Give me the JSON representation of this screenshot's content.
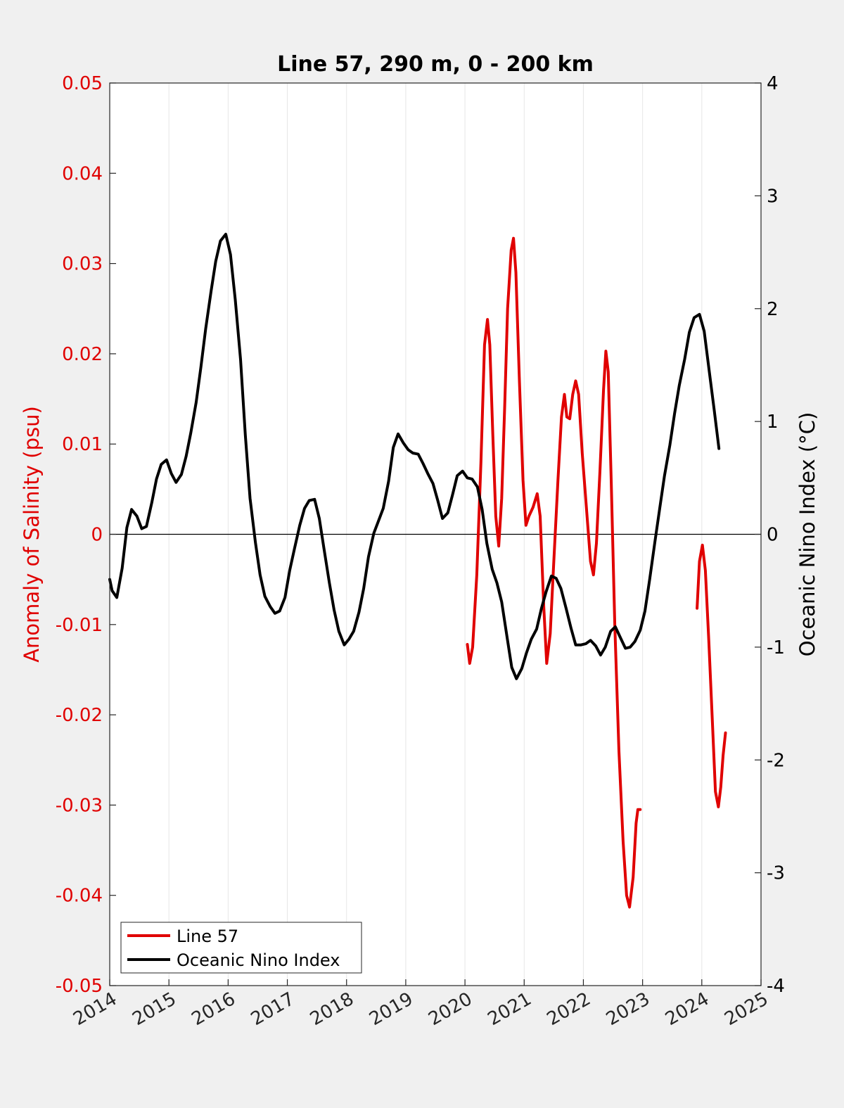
{
  "chart_data": {
    "type": "line",
    "title": "Line 57, 290 m, 0 - 200 km",
    "xlim": [
      2014,
      2025
    ],
    "x_ticks": [
      "2014",
      "2015",
      "2016",
      "2017",
      "2018",
      "2019",
      "2020",
      "2021",
      "2022",
      "2023",
      "2024",
      "2025"
    ],
    "left_axis": {
      "label": "Anomaly of Salinity (psu)",
      "color": "#e00000",
      "ylim": [
        -0.05,
        0.05
      ],
      "ticks": [
        "-0.05",
        "-0.04",
        "-0.03",
        "-0.02",
        "-0.01",
        "0",
        "0.01",
        "0.02",
        "0.03",
        "0.04",
        "0.05"
      ]
    },
    "right_axis": {
      "label": "Oceanic Nino Index (°C)",
      "color": "#000000",
      "ylim": [
        -4,
        4
      ],
      "ticks": [
        "-4",
        "-3",
        "-2",
        "-1",
        "0",
        "1",
        "2",
        "3",
        "4"
      ]
    },
    "grid": "vertical",
    "zero_line": true,
    "legend": {
      "placement": "bottom-left"
    },
    "series": [
      {
        "name": "Line 57",
        "axis": "left",
        "color": "#e00000",
        "segments": [
          [
            [
              2020.04,
              -0.0122
            ],
            [
              2020.08,
              -0.0143
            ],
            [
              2020.13,
              -0.0125
            ],
            [
              2020.2,
              -0.0045
            ],
            [
              2020.27,
              0.008
            ],
            [
              2020.33,
              0.021
            ],
            [
              2020.38,
              0.0238
            ],
            [
              2020.42,
              0.021
            ],
            [
              2020.47,
              0.011
            ],
            [
              2020.52,
              0.002
            ],
            [
              2020.57,
              -0.0013
            ],
            [
              2020.62,
              0.004
            ],
            [
              2020.67,
              0.014
            ],
            [
              2020.72,
              0.025
            ],
            [
              2020.78,
              0.0315
            ],
            [
              2020.82,
              0.0328
            ],
            [
              2020.86,
              0.029
            ],
            [
              2020.92,
              0.017
            ],
            [
              2020.98,
              0.006
            ],
            [
              2021.03,
              0.001
            ],
            [
              2021.08,
              0.002
            ],
            [
              2021.15,
              0.003
            ],
            [
              2021.22,
              0.0045
            ],
            [
              2021.27,
              0.002
            ],
            [
              2021.33,
              -0.008
            ],
            [
              2021.38,
              -0.0143
            ],
            [
              2021.44,
              -0.011
            ],
            [
              2021.5,
              -0.003
            ],
            [
              2021.57,
              0.006
            ],
            [
              2021.63,
              0.013
            ],
            [
              2021.68,
              0.0155
            ],
            [
              2021.72,
              0.013
            ],
            [
              2021.77,
              0.0128
            ],
            [
              2021.82,
              0.0155
            ],
            [
              2021.87,
              0.017
            ],
            [
              2021.92,
              0.0155
            ],
            [
              2021.98,
              0.009
            ],
            [
              2022.05,
              0.003
            ],
            [
              2022.12,
              -0.003
            ],
            [
              2022.17,
              -0.0045
            ],
            [
              2022.22,
              -0.001
            ],
            [
              2022.28,
              0.007
            ],
            [
              2022.34,
              0.016
            ],
            [
              2022.38,
              0.0203
            ],
            [
              2022.42,
              0.018
            ],
            [
              2022.47,
              0.006
            ],
            [
              2022.53,
              -0.01
            ],
            [
              2022.6,
              -0.024
            ],
            [
              2022.67,
              -0.034
            ],
            [
              2022.73,
              -0.04
            ],
            [
              2022.78,
              -0.0413
            ],
            [
              2022.84,
              -0.038
            ],
            [
              2022.89,
              -0.032
            ],
            [
              2022.92,
              -0.0305
            ],
            [
              2022.96,
              -0.0305
            ]
          ],
          [
            [
              2023.92,
              -0.0082
            ],
            [
              2023.96,
              -0.003
            ],
            [
              2024.01,
              -0.0012
            ],
            [
              2024.06,
              -0.004
            ],
            [
              2024.12,
              -0.012
            ],
            [
              2024.18,
              -0.021
            ],
            [
              2024.23,
              -0.0285
            ],
            [
              2024.28,
              -0.0302
            ],
            [
              2024.32,
              -0.028
            ],
            [
              2024.36,
              -0.0245
            ],
            [
              2024.4,
              -0.022
            ]
          ]
        ]
      },
      {
        "name": "Oceanic Nino Index",
        "axis": "right",
        "color": "#000000",
        "segments": [
          [
            [
              2014.0,
              -0.4
            ],
            [
              2014.04,
              -0.5
            ],
            [
              2014.12,
              -0.56
            ],
            [
              2014.21,
              -0.3
            ],
            [
              2014.29,
              0.06
            ],
            [
              2014.37,
              0.22
            ],
            [
              2014.46,
              0.16
            ],
            [
              2014.54,
              0.05
            ],
            [
              2014.62,
              0.07
            ],
            [
              2014.71,
              0.28
            ],
            [
              2014.79,
              0.49
            ],
            [
              2014.87,
              0.62
            ],
            [
              2014.96,
              0.66
            ],
            [
              2015.04,
              0.54
            ],
            [
              2015.12,
              0.46
            ],
            [
              2015.21,
              0.53
            ],
            [
              2015.29,
              0.69
            ],
            [
              2015.37,
              0.9
            ],
            [
              2015.46,
              1.17
            ],
            [
              2015.54,
              1.48
            ],
            [
              2015.62,
              1.82
            ],
            [
              2015.71,
              2.15
            ],
            [
              2015.79,
              2.42
            ],
            [
              2015.87,
              2.6
            ],
            [
              2015.96,
              2.66
            ],
            [
              2016.04,
              2.48
            ],
            [
              2016.12,
              2.08
            ],
            [
              2016.21,
              1.55
            ],
            [
              2016.29,
              0.88
            ],
            [
              2016.37,
              0.32
            ],
            [
              2016.46,
              -0.07
            ],
            [
              2016.54,
              -0.36
            ],
            [
              2016.62,
              -0.55
            ],
            [
              2016.71,
              -0.64
            ],
            [
              2016.79,
              -0.7
            ],
            [
              2016.87,
              -0.68
            ],
            [
              2016.96,
              -0.56
            ],
            [
              2017.04,
              -0.32
            ],
            [
              2017.12,
              -0.13
            ],
            [
              2017.21,
              0.08
            ],
            [
              2017.29,
              0.23
            ],
            [
              2017.37,
              0.3
            ],
            [
              2017.46,
              0.31
            ],
            [
              2017.54,
              0.14
            ],
            [
              2017.62,
              -0.13
            ],
            [
              2017.71,
              -0.43
            ],
            [
              2017.79,
              -0.67
            ],
            [
              2017.87,
              -0.86
            ],
            [
              2017.96,
              -0.98
            ],
            [
              2018.04,
              -0.93
            ],
            [
              2018.12,
              -0.86
            ],
            [
              2018.21,
              -0.69
            ],
            [
              2018.29,
              -0.48
            ],
            [
              2018.37,
              -0.2
            ],
            [
              2018.46,
              0.01
            ],
            [
              2018.54,
              0.12
            ],
            [
              2018.62,
              0.23
            ],
            [
              2018.71,
              0.47
            ],
            [
              2018.79,
              0.77
            ],
            [
              2018.87,
              0.89
            ],
            [
              2018.96,
              0.81
            ],
            [
              2019.04,
              0.75
            ],
            [
              2019.12,
              0.72
            ],
            [
              2019.21,
              0.71
            ],
            [
              2019.29,
              0.63
            ],
            [
              2019.37,
              0.54
            ],
            [
              2019.46,
              0.45
            ],
            [
              2019.54,
              0.3
            ],
            [
              2019.62,
              0.14
            ],
            [
              2019.71,
              0.19
            ],
            [
              2019.79,
              0.35
            ],
            [
              2019.87,
              0.52
            ],
            [
              2019.96,
              0.56
            ],
            [
              2020.04,
              0.5
            ],
            [
              2020.12,
              0.49
            ],
            [
              2020.21,
              0.42
            ],
            [
              2020.29,
              0.22
            ],
            [
              2020.37,
              -0.08
            ],
            [
              2020.46,
              -0.31
            ],
            [
              2020.54,
              -0.43
            ],
            [
              2020.62,
              -0.6
            ],
            [
              2020.71,
              -0.91
            ],
            [
              2020.79,
              -1.18
            ],
            [
              2020.87,
              -1.28
            ],
            [
              2020.96,
              -1.19
            ],
            [
              2021.04,
              -1.05
            ],
            [
              2021.12,
              -0.93
            ],
            [
              2021.21,
              -0.84
            ],
            [
              2021.29,
              -0.66
            ],
            [
              2021.37,
              -0.51
            ],
            [
              2021.46,
              -0.37
            ],
            [
              2021.54,
              -0.39
            ],
            [
              2021.62,
              -0.48
            ],
            [
              2021.71,
              -0.66
            ],
            [
              2021.79,
              -0.83
            ],
            [
              2021.87,
              -0.98
            ],
            [
              2021.96,
              -0.98
            ],
            [
              2022.04,
              -0.97
            ],
            [
              2022.12,
              -0.94
            ],
            [
              2022.21,
              -0.99
            ],
            [
              2022.29,
              -1.07
            ],
            [
              2022.37,
              -1.0
            ],
            [
              2022.46,
              -0.86
            ],
            [
              2022.54,
              -0.82
            ],
            [
              2022.62,
              -0.91
            ],
            [
              2022.71,
              -1.01
            ],
            [
              2022.79,
              -1.0
            ],
            [
              2022.87,
              -0.95
            ],
            [
              2022.96,
              -0.85
            ],
            [
              2023.04,
              -0.68
            ],
            [
              2023.12,
              -0.4
            ],
            [
              2023.21,
              -0.06
            ],
            [
              2023.29,
              0.23
            ],
            [
              2023.37,
              0.52
            ],
            [
              2023.46,
              0.79
            ],
            [
              2023.54,
              1.07
            ],
            [
              2023.62,
              1.32
            ],
            [
              2023.71,
              1.55
            ],
            [
              2023.79,
              1.79
            ],
            [
              2023.87,
              1.92
            ],
            [
              2023.96,
              1.95
            ],
            [
              2024.04,
              1.8
            ],
            [
              2024.12,
              1.47
            ],
            [
              2024.21,
              1.1
            ],
            [
              2024.29,
              0.76
            ]
          ]
        ]
      }
    ]
  }
}
